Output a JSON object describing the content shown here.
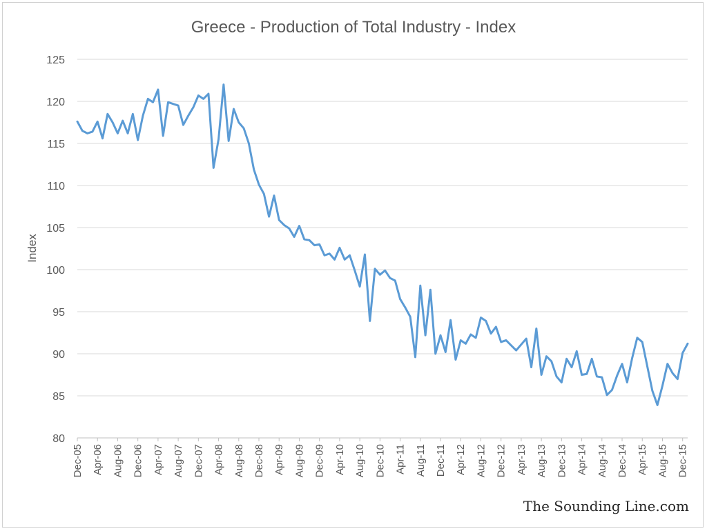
{
  "chart_data": {
    "type": "line",
    "title": "Greece - Production of Total Industry - Index",
    "xlabel": "",
    "ylabel": "Index",
    "ylim": [
      80,
      125
    ],
    "yticks": [
      80,
      85,
      90,
      95,
      100,
      105,
      110,
      115,
      120,
      125
    ],
    "grid": true,
    "legend": "none",
    "line_color": "#5b9bd5",
    "x_tick_labels": [
      "Dec-05",
      "Apr-06",
      "Aug-06",
      "Dec-06",
      "Apr-07",
      "Aug-07",
      "Dec-07",
      "Apr-08",
      "Aug-08",
      "Dec-08",
      "Apr-09",
      "Aug-09",
      "Dec-09",
      "Apr-10",
      "Aug-10",
      "Dec-10",
      "Apr-11",
      "Aug-11",
      "Dec-11",
      "Apr-12",
      "Aug-12",
      "Dec-12",
      "Apr-13",
      "Aug-13",
      "Dec-13",
      "Apr-14",
      "Aug-14",
      "Dec-14",
      "Apr-15",
      "Aug-15",
      "Dec-15"
    ],
    "x_start": "2005-12",
    "x_end": "2015-12",
    "series": [
      {
        "values": [
          117.6,
          116.5,
          116.2,
          116.4,
          117.6,
          115.6,
          118.5,
          117.5,
          116.2,
          117.7,
          116.2,
          118.5,
          115.4,
          118.3,
          120.3,
          119.9,
          121.4,
          115.9,
          119.9,
          119.7,
          119.5,
          117.2,
          118.3,
          119.3,
          120.7,
          120.3,
          120.9,
          112.1,
          115.5,
          122.0,
          115.3,
          119.1,
          117.5,
          116.8,
          115.0,
          111.9,
          110.1,
          109.0,
          106.3,
          108.8,
          105.9,
          105.3,
          104.9,
          103.9,
          105.2,
          103.6,
          103.5,
          102.9,
          103.0,
          101.7,
          101.9,
          101.2,
          102.6,
          101.2,
          101.7,
          99.9,
          98.0,
          101.8,
          93.9,
          100.1,
          99.4,
          99.9,
          99.0,
          98.7,
          96.5,
          95.5,
          94.4,
          89.6,
          98.1,
          92.2,
          97.6,
          90.0,
          92.2,
          90.2,
          94.0,
          89.3,
          91.6,
          91.2,
          92.3,
          91.9,
          94.3,
          93.9,
          92.4,
          93.2,
          91.4,
          91.6,
          91.0,
          90.4,
          91.1,
          91.8,
          88.4,
          93.0,
          87.5,
          89.7,
          89.1,
          87.3,
          86.6,
          89.4,
          88.4,
          90.3,
          87.5,
          87.6,
          89.4,
          87.3,
          87.2,
          85.1,
          85.7,
          87.4,
          88.8,
          86.6,
          89.5,
          91.9,
          91.4,
          88.5,
          85.6,
          83.9,
          86.2,
          88.8,
          87.7,
          87.0,
          90.1,
          91.2
        ]
      }
    ]
  },
  "watermark": "The Sounding Line.com"
}
